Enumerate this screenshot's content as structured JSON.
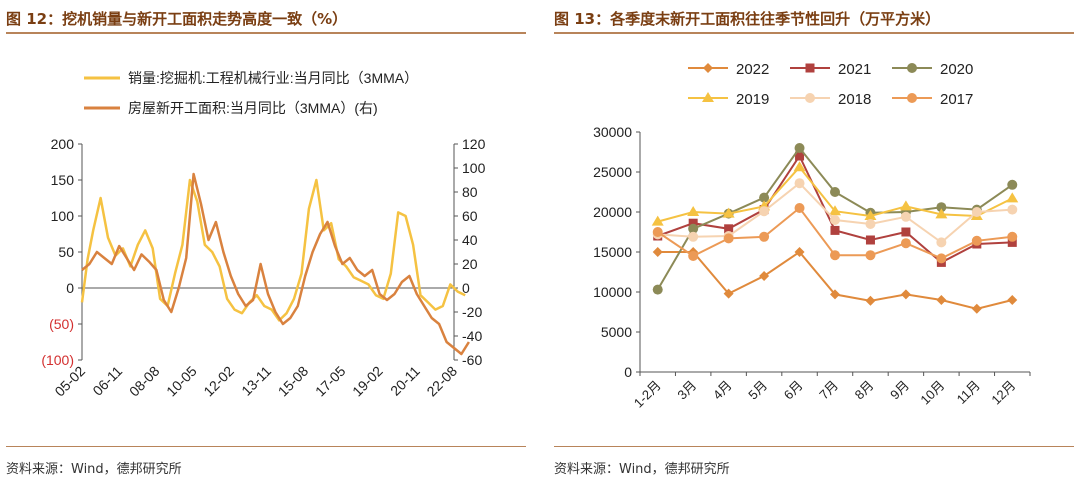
{
  "left": {
    "title": "图 12：挖机销量与新开工面积走势高度一致（%）",
    "source": "资料来源：Wind，德邦研究所",
    "chart_data": {
      "type": "line",
      "title": "挖机销量与新开工面积走势高度一致（%）",
      "x_tick_labels": [
        "05-02",
        "06-11",
        "08-08",
        "10-05",
        "12-02",
        "13-11",
        "15-08",
        "17-05",
        "19-02",
        "20-11",
        "22-08"
      ],
      "left_axis": {
        "ylim": [
          -100,
          200
        ],
        "ticks": [
          "200",
          "150",
          "100",
          "50",
          "0",
          "(50)",
          "(100)"
        ]
      },
      "right_axis": {
        "ylim": [
          -60,
          120
        ],
        "ticks": [
          "120",
          "100",
          "80",
          "60",
          "40",
          "20",
          "0",
          "-20",
          "-40",
          "-60"
        ]
      },
      "series": [
        {
          "name": "销量:挖掘机:工程机械行业:当月同比（3MMA）",
          "axis": "left",
          "color": "#f5c242",
          "x": [
            0,
            0.15,
            0.3,
            0.5,
            0.7,
            0.9,
            1.1,
            1.3,
            1.5,
            1.7,
            1.9,
            2.1,
            2.3,
            2.5,
            2.7,
            2.9,
            3.1,
            3.3,
            3.5,
            3.7,
            3.9,
            4.1,
            4.3,
            4.5,
            4.7,
            4.9,
            5.1,
            5.3,
            5.5,
            5.7,
            5.9,
            6.1,
            6.3,
            6.5,
            6.7,
            6.9,
            7.1,
            7.3,
            7.5,
            7.7,
            7.9,
            8.1,
            8.3,
            8.5,
            8.7,
            8.9,
            9.1,
            9.3,
            9.5,
            9.7,
            9.9,
            10.1,
            10.3
          ],
          "values": [
            -20,
            40,
            80,
            125,
            70,
            45,
            55,
            30,
            60,
            80,
            55,
            -15,
            -25,
            20,
            60,
            150,
            120,
            60,
            50,
            30,
            -15,
            -30,
            -35,
            -20,
            -10,
            -25,
            -30,
            -45,
            -35,
            -15,
            20,
            110,
            150,
            80,
            90,
            40,
            30,
            15,
            10,
            5,
            -10,
            -15,
            20,
            105,
            100,
            60,
            -10,
            -20,
            -30,
            -25,
            5,
            -5,
            -10
          ]
        },
        {
          "name": "房屋新开工面积:当月同比（3MMA）(右)",
          "axis": "right",
          "color": "#d9823f",
          "x": [
            0,
            0.2,
            0.4,
            0.6,
            0.8,
            1.0,
            1.2,
            1.4,
            1.6,
            1.8,
            2.0,
            2.2,
            2.4,
            2.6,
            2.8,
            3.0,
            3.2,
            3.4,
            3.6,
            3.8,
            4.0,
            4.2,
            4.4,
            4.6,
            4.8,
            5.0,
            5.2,
            5.4,
            5.6,
            5.8,
            6.0,
            6.2,
            6.4,
            6.6,
            6.8,
            7.0,
            7.2,
            7.4,
            7.6,
            7.8,
            8.0,
            8.2,
            8.4,
            8.6,
            8.8,
            9.0,
            9.2,
            9.4,
            9.6,
            9.8,
            10.0,
            10.2,
            10.4
          ],
          "values": [
            15,
            20,
            30,
            25,
            20,
            35,
            25,
            15,
            28,
            22,
            15,
            -10,
            -20,
            0,
            25,
            95,
            70,
            40,
            55,
            30,
            10,
            -5,
            -15,
            -10,
            20,
            -5,
            -20,
            -30,
            -25,
            -15,
            10,
            30,
            45,
            55,
            35,
            20,
            25,
            15,
            10,
            15,
            -5,
            -10,
            -5,
            5,
            10,
            -5,
            -15,
            -25,
            -30,
            -45,
            -50,
            -55,
            -45
          ]
        }
      ]
    }
  },
  "right": {
    "title": "图 13：各季度末新开工面积往往季节性回升（万平方米）",
    "source": "资料来源：Wind，德邦研究所",
    "chart_data": {
      "type": "line",
      "title": "各季度末新开工面积往往季节性回升（万平方米）",
      "categories": [
        "1-2月",
        "3月",
        "4月",
        "5月",
        "6月",
        "7月",
        "8月",
        "9月",
        "10月",
        "11月",
        "12月"
      ],
      "ylim": [
        0,
        30000
      ],
      "ticks": [
        "30000",
        "25000",
        "20000",
        "15000",
        "10000",
        "5000",
        "0"
      ],
      "series": [
        {
          "name": "2022",
          "color": "#e08a3c",
          "marker": "diamond",
          "values": [
            15000,
            15000,
            9800,
            12000,
            15000,
            9700,
            8900,
            9700,
            9000,
            7900,
            9000
          ]
        },
        {
          "name": "2021",
          "color": "#b0413e",
          "marker": "square",
          "values": [
            17000,
            18600,
            17900,
            20300,
            27000,
            17700,
            16500,
            17500,
            13700,
            16000,
            16200
          ]
        },
        {
          "name": "2020",
          "color": "#8c8a57",
          "marker": "circle",
          "values": [
            10300,
            17900,
            19800,
            21800,
            28000,
            22500,
            19900,
            20000,
            20600,
            20300,
            23400
          ]
        },
        {
          "name": "2019",
          "color": "#f5c242",
          "marker": "triangle",
          "values": [
            18800,
            20000,
            19800,
            20700,
            25600,
            20100,
            19500,
            20700,
            19700,
            19500,
            21700
          ]
        },
        {
          "name": "2018",
          "color": "#f6d3b1",
          "marker": "circle",
          "values": [
            17200,
            16900,
            17000,
            20100,
            23600,
            19000,
            18500,
            19400,
            16200,
            20000,
            20300
          ]
        },
        {
          "name": "2017",
          "color": "#ec9a56",
          "marker": "circle",
          "values": [
            17500,
            14500,
            16700,
            16900,
            20500,
            14600,
            14600,
            16100,
            14200,
            16400,
            16900
          ]
        }
      ]
    }
  }
}
